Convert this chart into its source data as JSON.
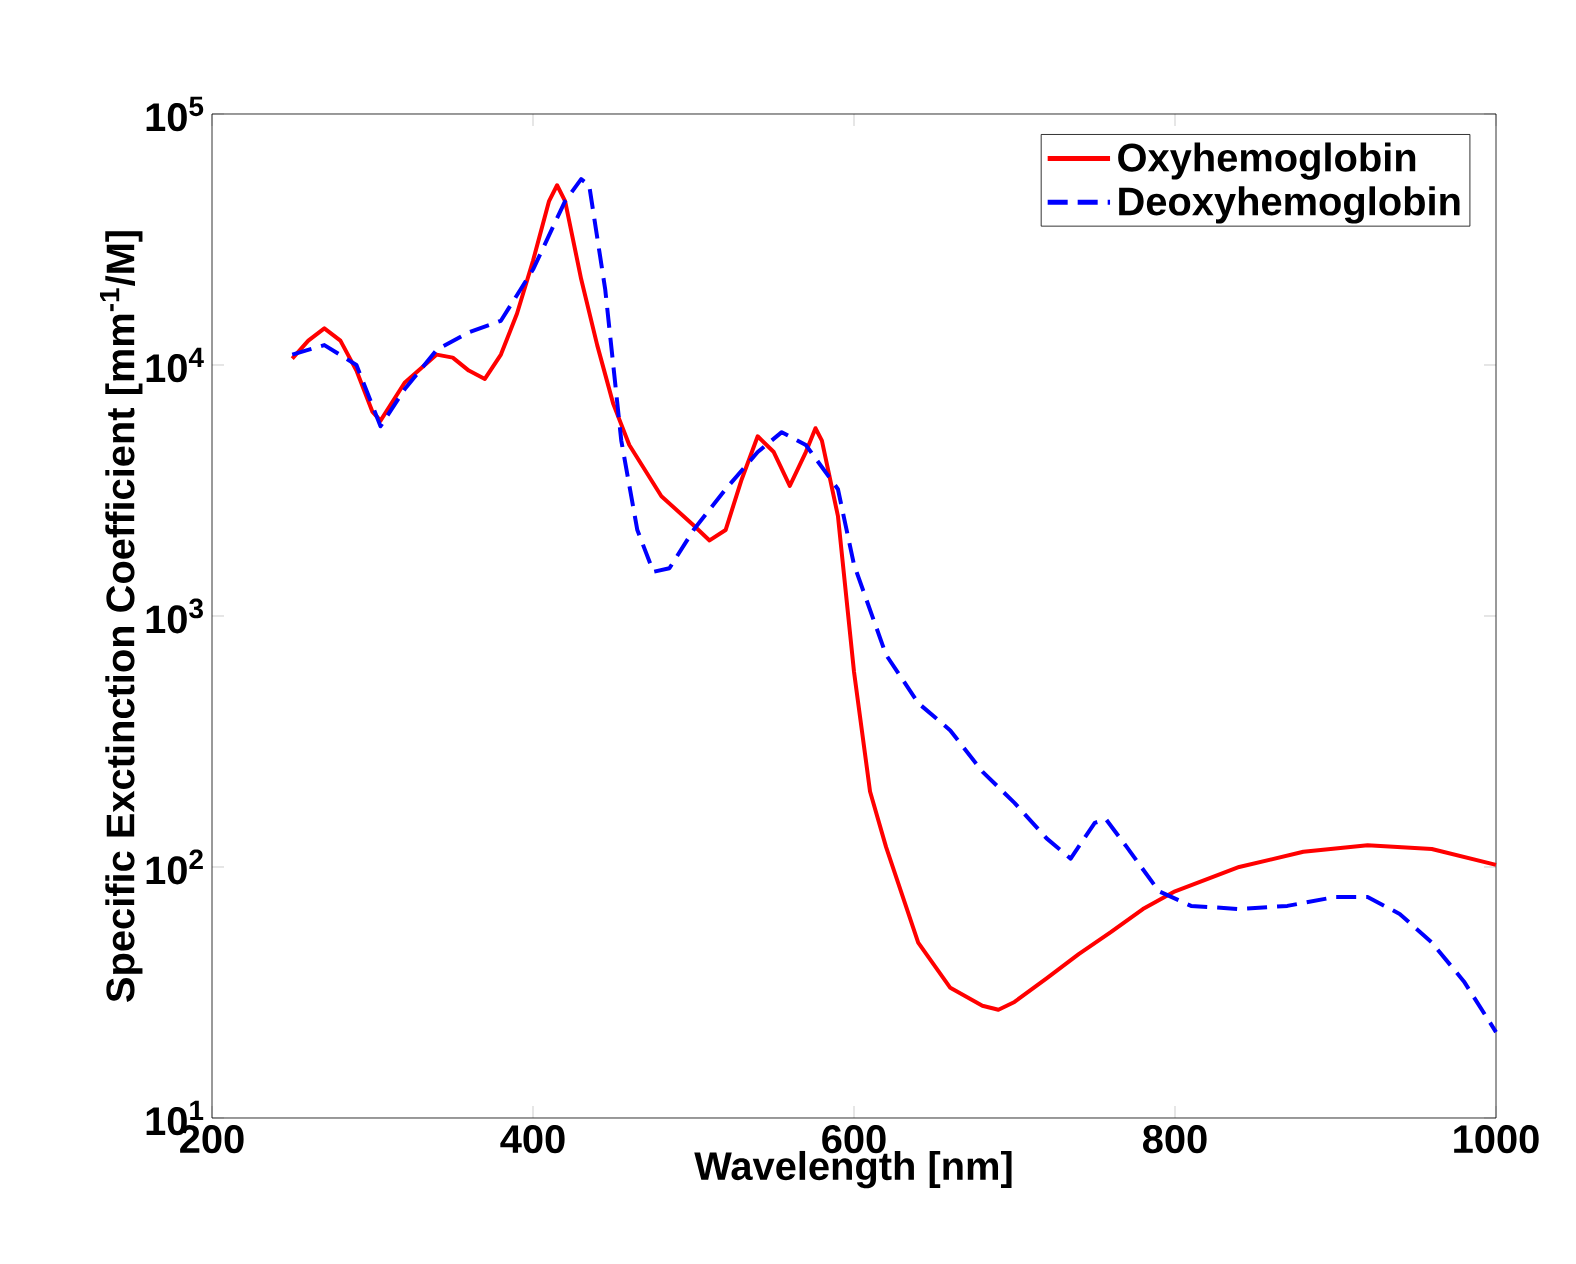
{
  "chart_data": {
    "type": "line",
    "xlabel": "Wavelength [nm]",
    "ylabel": "Specific Exctinction Coefficient [mm$^{-1}$/M]",
    "log": "y",
    "grid": false,
    "legend": "top right",
    "marker": "none",
    "xlim": [
      200,
      1000
    ],
    "xticks": [
      200,
      400,
      600,
      800,
      1000
    ],
    "ylim": [
      10,
      100000
    ],
    "yticks": [
      {
        "value": 10,
        "label": "10$^{1}$"
      },
      {
        "value": 100,
        "label": "10$^{2}$"
      },
      {
        "value": 1000,
        "label": "10$^{3}$"
      },
      {
        "value": 10000,
        "label": "10$^{4}$"
      },
      {
        "value": 100000,
        "label": "10$^{5}$"
      }
    ],
    "series": [
      {
        "name": "Oxyhemoglobin",
        "color": "#ff0000",
        "line_style": "solid",
        "x": [
          250,
          260,
          270,
          280,
          290,
          300,
          305,
          320,
          340,
          350,
          360,
          370,
          380,
          390,
          400,
          410,
          415,
          420,
          430,
          440,
          450,
          460,
          480,
          500,
          510,
          520,
          530,
          540,
          550,
          560,
          570,
          576,
          580,
          590,
          600,
          610,
          620,
          640,
          660,
          680,
          690,
          700,
          720,
          740,
          760,
          780,
          800,
          840,
          880,
          920,
          960,
          1000
        ],
        "values": [
          10600,
          12500,
          14000,
          12500,
          9500,
          6500,
          6000,
          8500,
          11000,
          10700,
          9500,
          8800,
          11000,
          16000,
          26000,
          45000,
          52000,
          45000,
          22000,
          12000,
          7000,
          4800,
          3000,
          2300,
          2000,
          2200,
          3500,
          5200,
          4500,
          3300,
          4500,
          5600,
          5000,
          2500,
          600,
          200,
          120,
          50,
          33,
          28,
          27,
          29,
          36,
          45,
          55,
          68,
          80,
          100,
          115,
          122,
          118,
          102
        ]
      },
      {
        "name": "Deoxyhemoglobin",
        "color": "#0000ff",
        "line_style": "dashed",
        "x": [
          250,
          270,
          290,
          305,
          320,
          340,
          360,
          380,
          400,
          420,
          430,
          435,
          445,
          455,
          465,
          475,
          485,
          500,
          520,
          540,
          555,
          570,
          590,
          600,
          620,
          640,
          660,
          680,
          700,
          720,
          735,
          750,
          757,
          770,
          790,
          810,
          840,
          870,
          900,
          920,
          940,
          960,
          980,
          1000
        ],
        "values": [
          11000,
          12000,
          10000,
          5700,
          8000,
          11500,
          13500,
          15000,
          24000,
          45000,
          55000,
          52000,
          20000,
          5000,
          2200,
          1500,
          1550,
          2200,
          3200,
          4500,
          5400,
          4800,
          3200,
          1600,
          700,
          450,
          350,
          240,
          180,
          130,
          108,
          150,
          155,
          120,
          80,
          70,
          68,
          70,
          76,
          76,
          65,
          50,
          35,
          22
        ]
      }
    ]
  }
}
